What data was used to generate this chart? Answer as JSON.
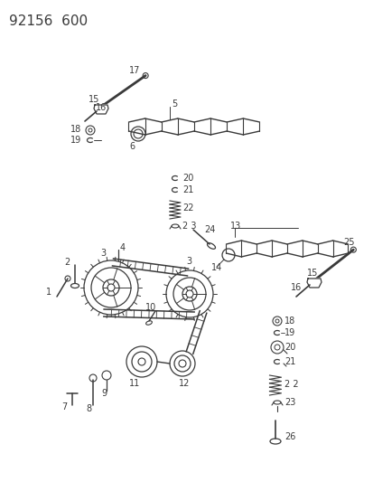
{
  "title": "92156  600",
  "bg_color": "#ffffff",
  "line_color": "#3a3a3a",
  "title_fontsize": 11,
  "label_fontsize": 7.0,
  "fig_width": 4.14,
  "fig_height": 5.33,
  "dpi": 100
}
